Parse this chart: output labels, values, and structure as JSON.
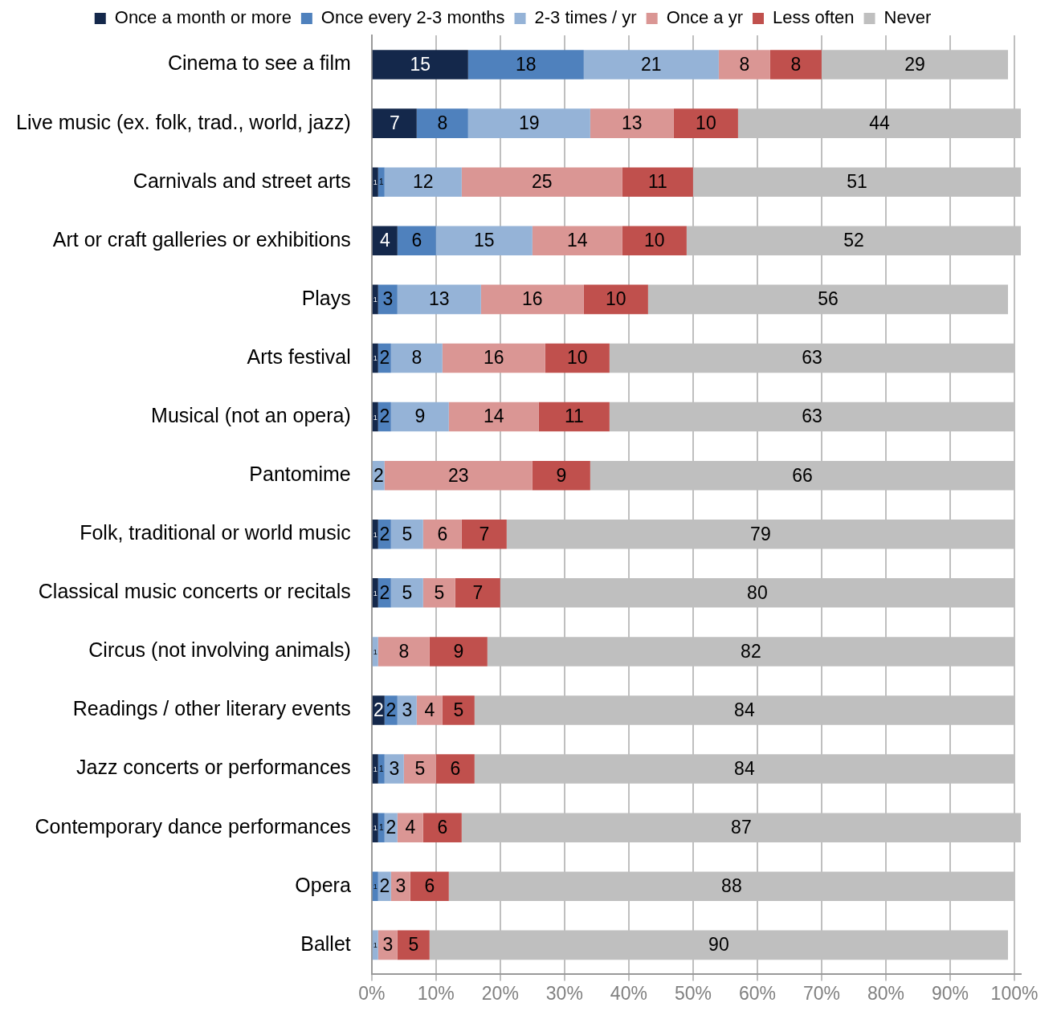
{
  "chart_data": {
    "type": "bar",
    "orientation": "horizontal",
    "stacked": true,
    "data_labels": true,
    "grid": "x",
    "legend": "top",
    "categories": [
      "Cinema to see a film",
      "Live music (ex. folk, trad., world, jazz)",
      "Carnivals and street arts",
      "Art or craft galleries or exhibitions",
      "Plays",
      "Arts festival",
      "Musical (not an opera)",
      "Pantomime",
      "Folk, traditional or world music",
      "Classical music concerts or recitals",
      "Circus (not involving animals)",
      "Readings / other literary events",
      "Jazz concerts or performances",
      "Contemporary dance performances",
      "Opera",
      "Ballet"
    ],
    "series": [
      {
        "name": "Once a month or more",
        "color": "#14284b",
        "values": [
          15,
          7,
          1,
          4,
          1,
          1,
          1,
          null,
          1,
          1,
          null,
          2,
          1,
          1,
          null,
          null
        ]
      },
      {
        "name": "Once every 2-3 months",
        "color": "#4f81bd",
        "values": [
          18,
          8,
          1,
          6,
          3,
          2,
          2,
          null,
          2,
          2,
          null,
          2,
          1,
          1,
          1,
          null
        ]
      },
      {
        "name": "2-3 times / yr",
        "color": "#95b3d7",
        "values": [
          21,
          19,
          12,
          15,
          13,
          8,
          9,
          2,
          5,
          5,
          1,
          3,
          3,
          2,
          2,
          1
        ]
      },
      {
        "name": "Once a yr",
        "color": "#da9694",
        "values": [
          8,
          13,
          25,
          14,
          16,
          16,
          14,
          23,
          6,
          5,
          8,
          4,
          5,
          4,
          3,
          3
        ]
      },
      {
        "name": "Less often",
        "color": "#c0504d",
        "values": [
          8,
          10,
          11,
          10,
          10,
          10,
          11,
          9,
          7,
          7,
          9,
          5,
          6,
          6,
          6,
          5
        ]
      },
      {
        "name": "Never",
        "color": "#bfbfbf",
        "values": [
          29,
          44,
          51,
          52,
          56,
          63,
          63,
          66,
          79,
          80,
          82,
          84,
          84,
          87,
          88,
          90
        ]
      }
    ],
    "xlim": [
      0,
      101
    ],
    "xticks": [
      {
        "value": 0,
        "label": "0%"
      },
      {
        "value": 10,
        "label": "10%"
      },
      {
        "value": 20,
        "label": "20%"
      },
      {
        "value": 30,
        "label": "30%"
      },
      {
        "value": 40,
        "label": "40%"
      },
      {
        "value": 50,
        "label": "50%"
      },
      {
        "value": 60,
        "label": "60%"
      },
      {
        "value": 70,
        "label": "70%"
      },
      {
        "value": 80,
        "label": "80%"
      },
      {
        "value": 90,
        "label": "90%"
      },
      {
        "value": 100,
        "label": "100%"
      }
    ]
  }
}
